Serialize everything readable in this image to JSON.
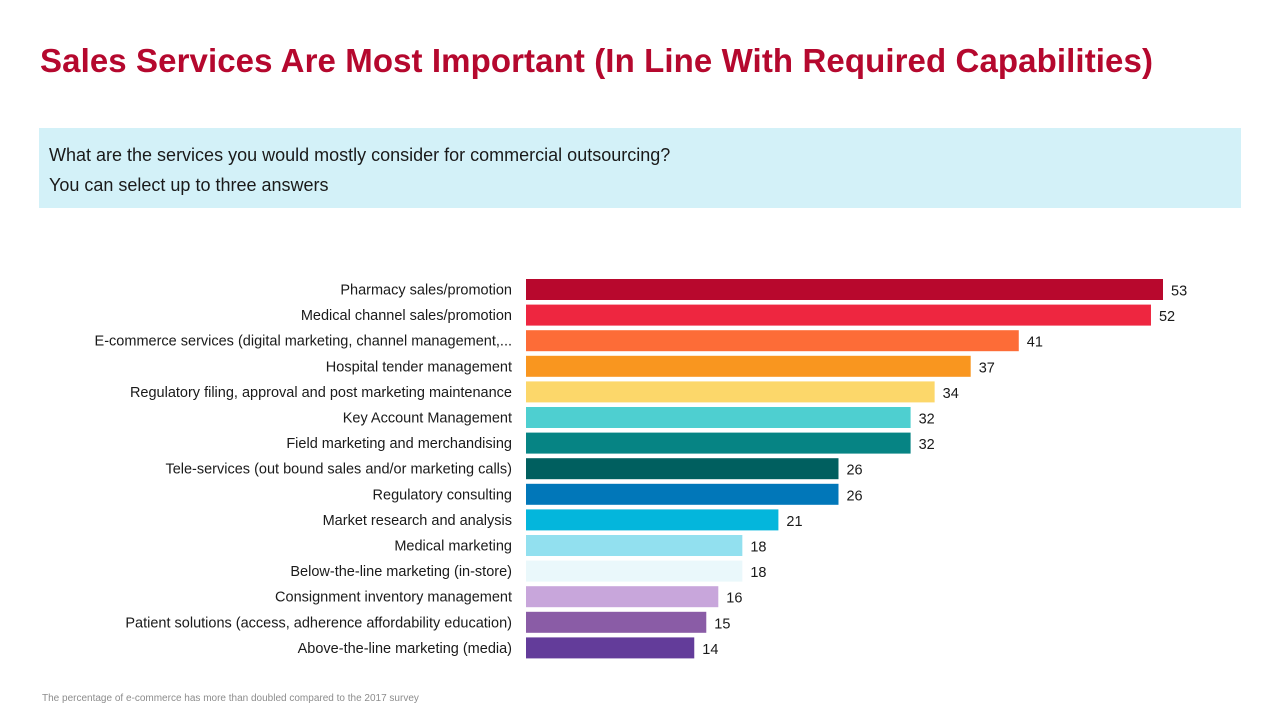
{
  "title": "Sales Services Are Most Important (In Line With Required Capabilities)",
  "question": {
    "line1": "What are the services you would mostly consider for commercial outsourcing?",
    "line2": "You can select up to three answers"
  },
  "footnote": "The percentage of e-commerce has more than doubled compared to the 2017 survey",
  "chart_data": {
    "type": "bar",
    "orientation": "horizontal",
    "title": "",
    "xlabel": "",
    "ylabel": "",
    "categories": [
      "Pharmacy sales/promotion",
      "Medical channel sales/promotion",
      "E-commerce services (digital marketing, channel management,...",
      "Hospital tender management",
      "Regulatory filing, approval and post marketing maintenance",
      "Key Account Management",
      "Field marketing and merchandising",
      "Tele-services (out bound sales and/or marketing calls)",
      "Regulatory consulting",
      "Market research and analysis",
      "Medical marketing",
      "Below-the-line marketing (in-store)",
      "Consignment inventory management",
      "Patient solutions (access, adherence affordability education)",
      "Above-the-line marketing (media)"
    ],
    "values": [
      53,
      52,
      41,
      37,
      34,
      32,
      32,
      26,
      26,
      21,
      18,
      18,
      16,
      15,
      14
    ],
    "colors": [
      "#b8082d",
      "#ee2640",
      "#fd6c37",
      "#f9961f",
      "#fcd76a",
      "#4ecfd0",
      "#068484",
      "#005f5f",
      "#0177b9",
      "#04b6dc",
      "#92e0ef",
      "#eaf8fb",
      "#c8a6db",
      "#8a5ca6",
      "#633c9a"
    ],
    "xlim": [
      0,
      53
    ],
    "grid": false,
    "legend": "none"
  }
}
